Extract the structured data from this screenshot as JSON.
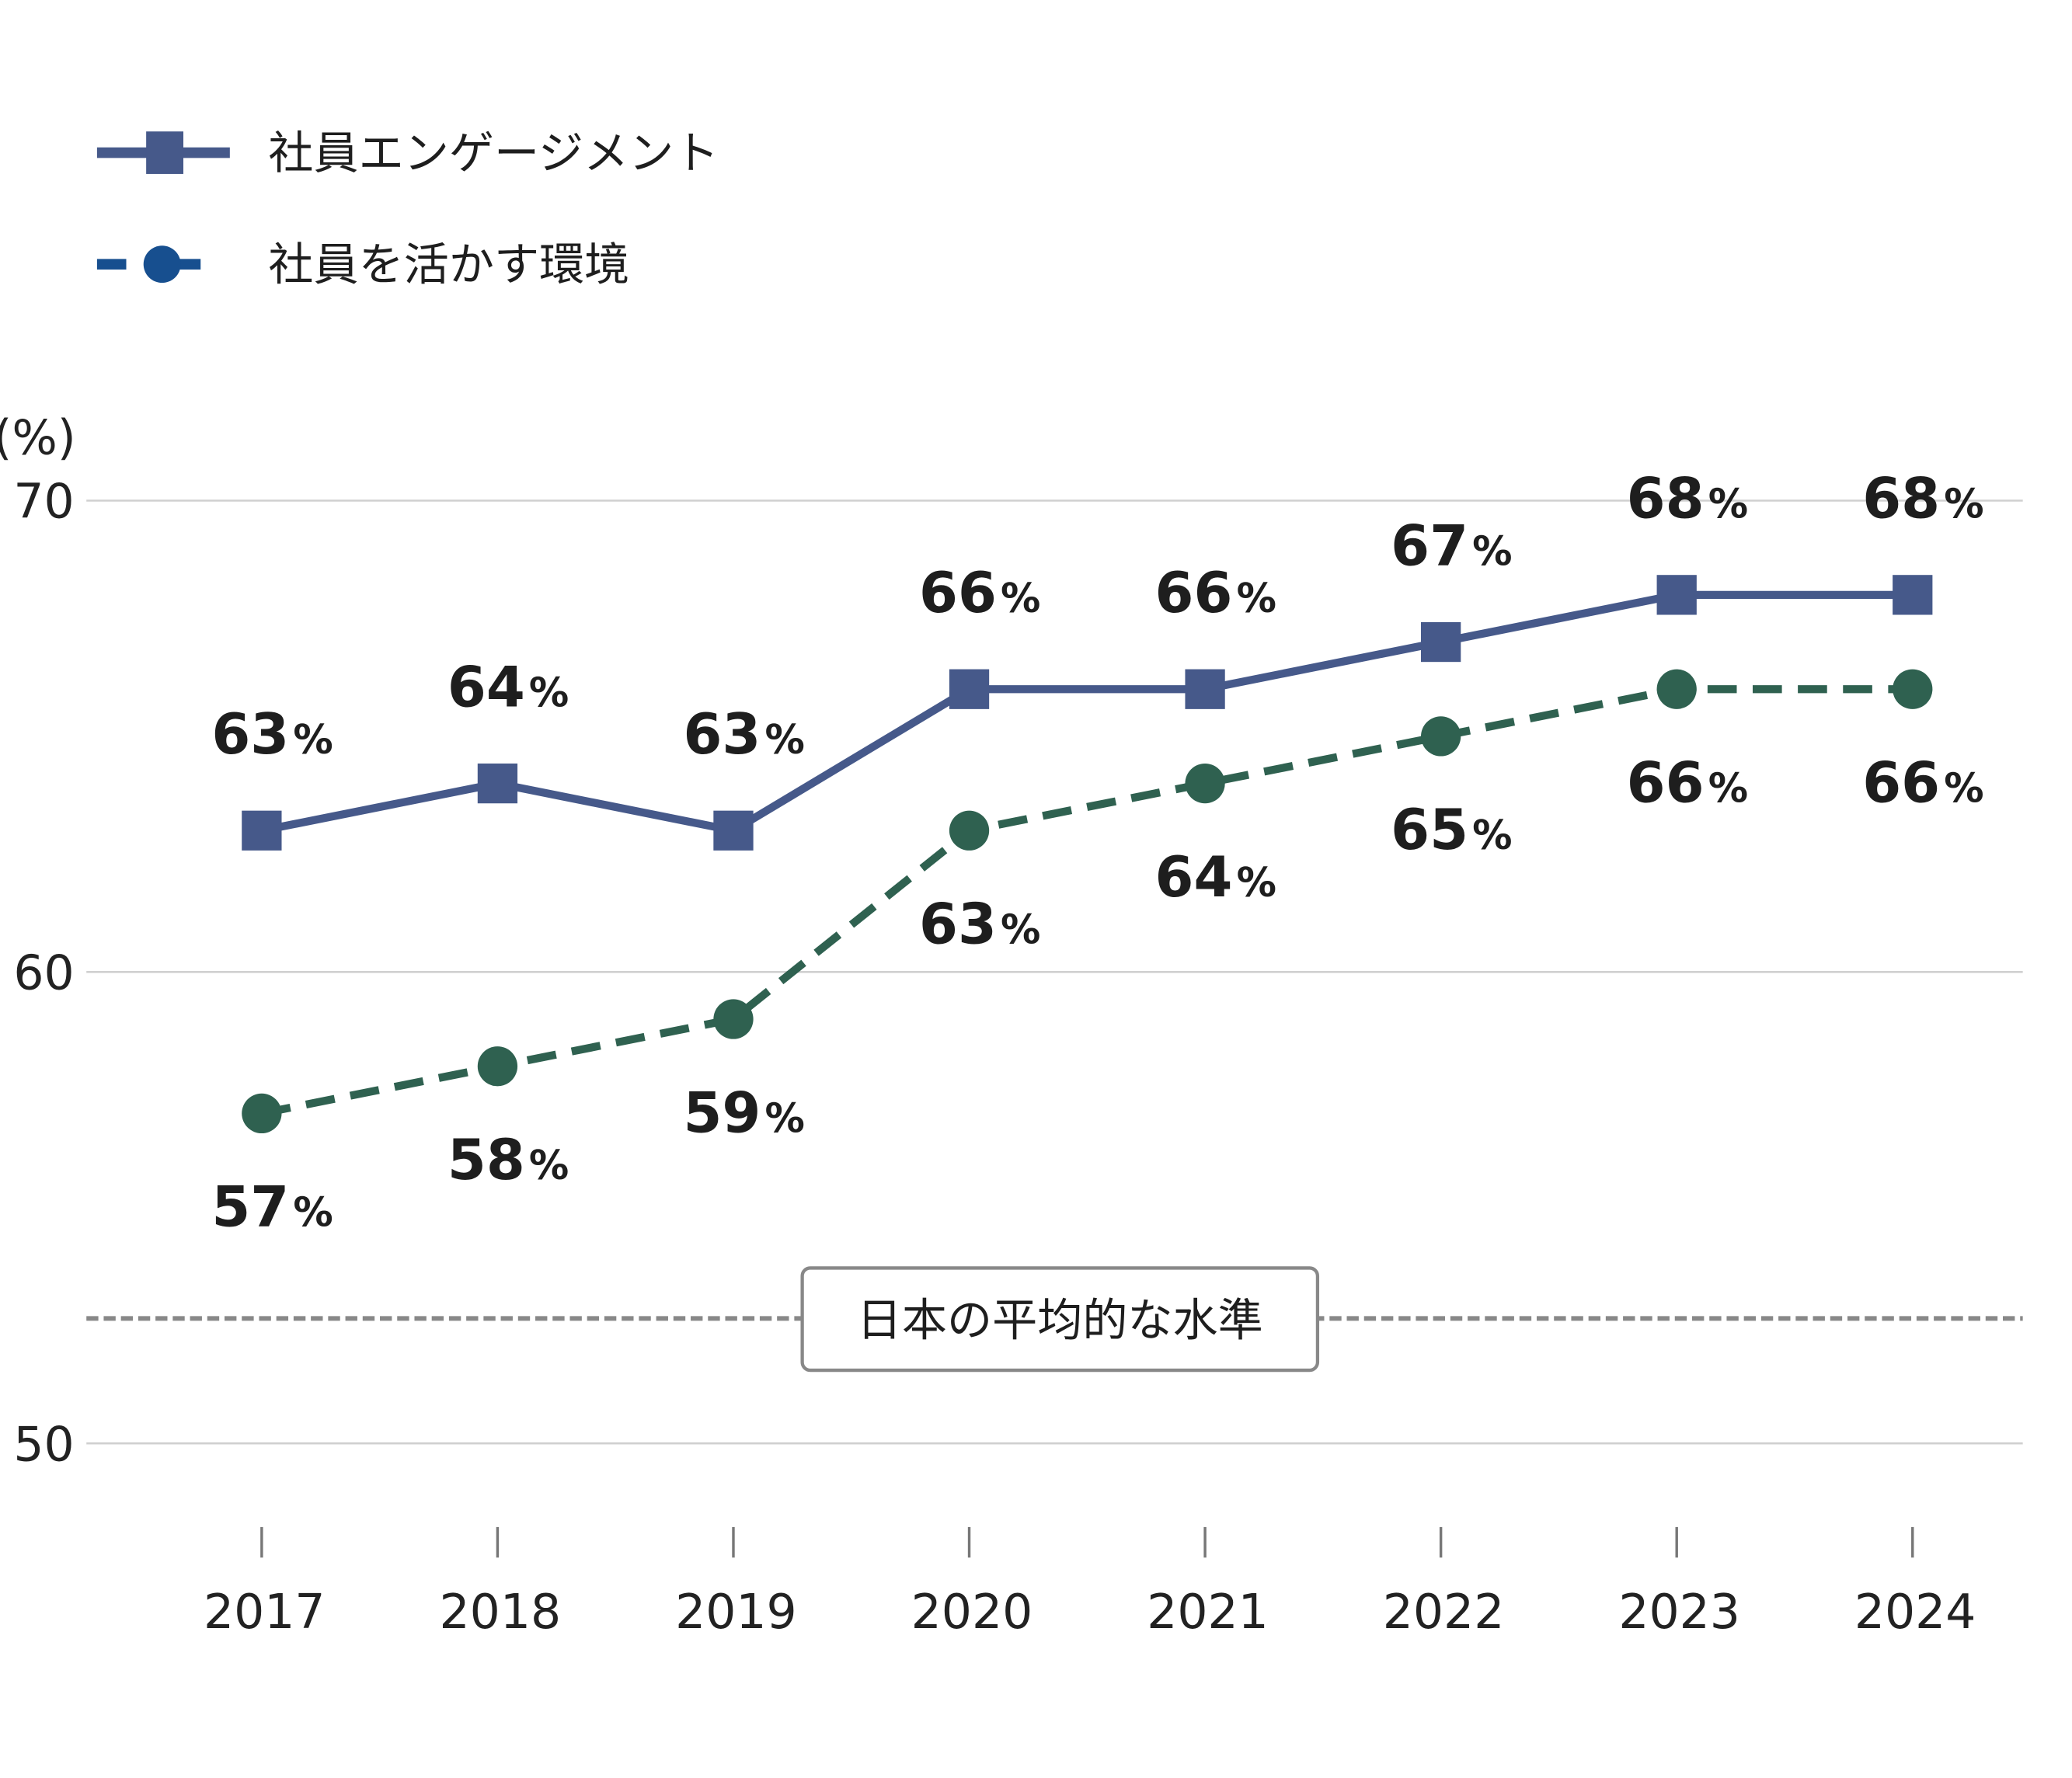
{
  "chart_data": {
    "type": "line",
    "title": "",
    "xlabel": "",
    "ylabel": "(%)",
    "categories": [
      "2017",
      "2018",
      "2019",
      "2020",
      "2021",
      "2022",
      "2023",
      "2024"
    ],
    "ylim": [
      50,
      70
    ],
    "yticks": [
      "50",
      "60",
      "70"
    ],
    "grid": true,
    "legend_position": "top-left",
    "label_suffix": "%",
    "series": [
      {
        "name": "社員エンゲージメント",
        "values": [
          63,
          64,
          63,
          66,
          66,
          67,
          68,
          68
        ],
        "color": "#46598a",
        "legend_color": "#46598a",
        "marker": "square",
        "line_style": "solid",
        "label_position": "above"
      },
      {
        "name": "社員を活かす環境",
        "values": [
          57,
          58,
          59,
          63,
          64,
          65,
          66,
          66
        ],
        "color": "#2f6150",
        "legend_color": "#174f8f",
        "marker": "circle",
        "line_style": "dashed",
        "label_position": "below"
      }
    ],
    "reference_line": {
      "label": "日本の平均的な水準",
      "value": 52.65,
      "color": "#888888",
      "line_style": "dashed"
    }
  }
}
